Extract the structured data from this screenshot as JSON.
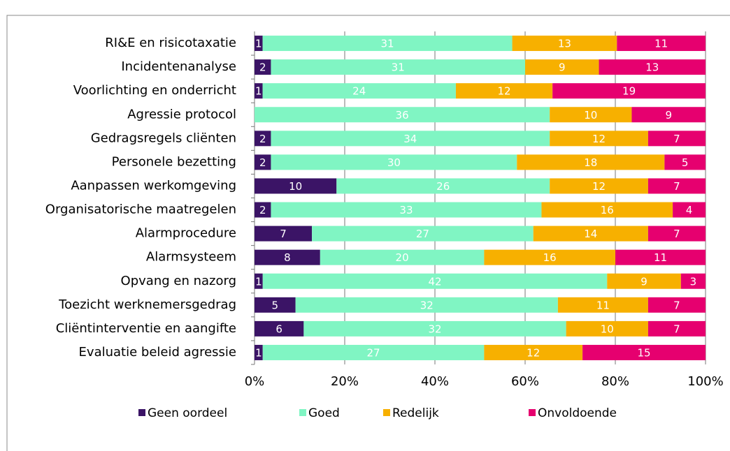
{
  "chart_data": {
    "type": "bar",
    "orientation": "horizontal",
    "stacking": "percent",
    "categories": [
      "RI&E en risicotaxatie",
      "Incidentenanalyse",
      "Voorlichting en onderricht",
      "Agressie protocol",
      "Gedragsregels cliënten",
      "Personele bezetting",
      "Aanpassen werkomgeving",
      "Organisatorische maatregelen",
      "Alarmprocedure",
      "Alarmsysteem",
      "Opvang en nazorg",
      "Toezicht werknemersgedrag",
      "Cliëntinterventie en aangifte",
      "Evaluatie beleid agressie"
    ],
    "series": [
      {
        "name": "Geen oordeel",
        "color": "#3b1466",
        "values": [
          1,
          2,
          1,
          0,
          2,
          2,
          10,
          2,
          7,
          8,
          1,
          5,
          6,
          1
        ]
      },
      {
        "name": "Goed",
        "color": "#80f5c3",
        "values": [
          31,
          31,
          24,
          36,
          34,
          30,
          26,
          33,
          27,
          20,
          42,
          32,
          32,
          27
        ]
      },
      {
        "name": "Redelijk",
        "color": "#f7b000",
        "values": [
          13,
          9,
          12,
          10,
          12,
          18,
          12,
          16,
          14,
          16,
          9,
          11,
          10,
          12
        ]
      },
      {
        "name": "Onvoldoende",
        "color": "#e6006f",
        "values": [
          11,
          13,
          19,
          9,
          7,
          5,
          7,
          4,
          7,
          11,
          3,
          7,
          7,
          15
        ]
      }
    ],
    "xlim": [
      0,
      100
    ],
    "xticks": [
      {
        "value": 0,
        "label": "0%"
      },
      {
        "value": 20,
        "label": "20%"
      },
      {
        "value": 40,
        "label": "40%"
      },
      {
        "value": 60,
        "label": "60%"
      },
      {
        "value": 80,
        "label": "80%"
      },
      {
        "value": 100,
        "label": "100%"
      }
    ],
    "grid": true,
    "legend": "bottom"
  }
}
